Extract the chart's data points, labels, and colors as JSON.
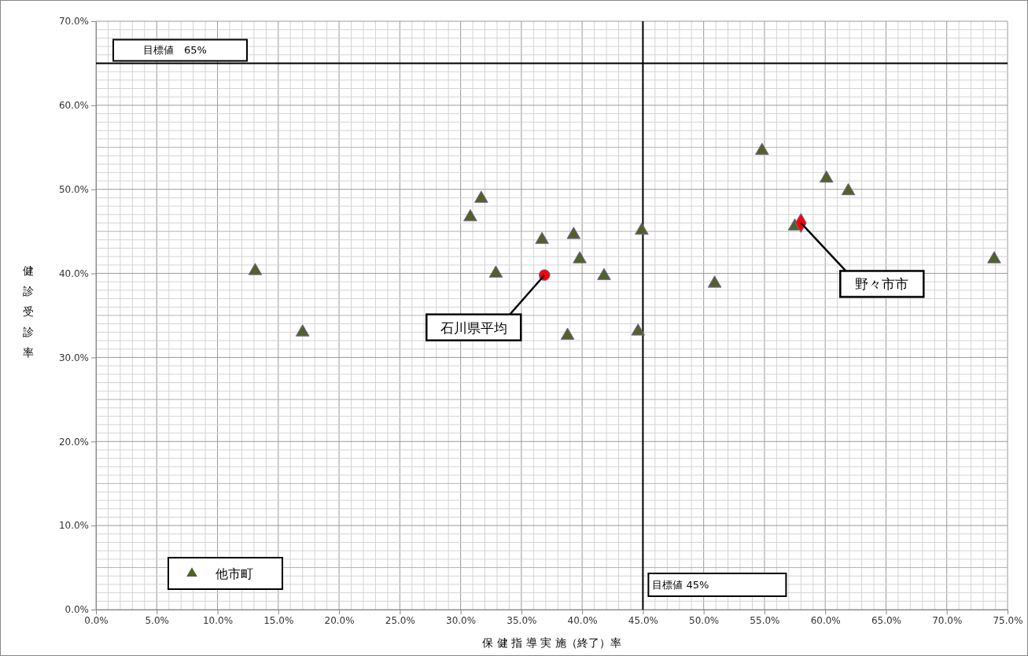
{
  "chart_data": {
    "type": "scatter",
    "xlabel": "保 健 指 導 実 施（終了）率",
    "ylabel": "健診受診率",
    "xlim": [
      0,
      75
    ],
    "ylim": [
      0,
      70
    ],
    "xticks": [
      {
        "value": 0,
        "label": "0.0%"
      },
      {
        "value": 5,
        "label": "5.0%"
      },
      {
        "value": 10,
        "label": "10.0%"
      },
      {
        "value": 15,
        "label": "15.0%"
      },
      {
        "value": 20,
        "label": "20.0%"
      },
      {
        "value": 25,
        "label": "25.0%"
      },
      {
        "value": 30,
        "label": "30.0%"
      },
      {
        "value": 35,
        "label": "35.0%"
      },
      {
        "value": 40,
        "label": "40.0%"
      },
      {
        "value": 45,
        "label": "45.0%"
      },
      {
        "value": 50,
        "label": "50.0%"
      },
      {
        "value": 55,
        "label": "55.0%"
      },
      {
        "value": 60,
        "label": "60.0%"
      },
      {
        "value": 65,
        "label": "65.0%"
      },
      {
        "value": 70,
        "label": "70.0%"
      },
      {
        "value": 75,
        "label": "75.0%"
      }
    ],
    "yticks": [
      {
        "value": 0,
        "label": "0.0%"
      },
      {
        "value": 10,
        "label": "10.0%"
      },
      {
        "value": 20,
        "label": "20.0%"
      },
      {
        "value": 30,
        "label": "30.0%"
      },
      {
        "value": 40,
        "label": "40.0%"
      },
      {
        "value": 50,
        "label": "50.0%"
      },
      {
        "value": 60,
        "label": "60.0%"
      },
      {
        "value": 70,
        "label": "70.0%"
      }
    ],
    "grid": true,
    "legend": "bottom left",
    "series": [
      {
        "name": "他市町",
        "color": "#4f6228",
        "marker": "triangle",
        "x": [
          13.1,
          17.0,
          30.8,
          31.7,
          32.9,
          36.7,
          39.3,
          39.8,
          38.8,
          41.8,
          44.6,
          44.9,
          50.9,
          54.8,
          57.5,
          60.1,
          61.9,
          73.9
        ],
        "values": [
          40.3,
          33.0,
          46.7,
          48.9,
          40.0,
          44.0,
          44.6,
          41.7,
          32.6,
          39.7,
          33.1,
          45.1,
          38.8,
          54.6,
          45.6,
          51.3,
          49.8,
          41.7
        ]
      },
      {
        "color": "#ff0000",
        "marker": "circle",
        "x": [
          36.9
        ],
        "values": [
          39.8
        ]
      },
      {
        "color": "#ff0000",
        "marker": "diamond",
        "x": [
          58.0
        ],
        "values": [
          46.0
        ]
      }
    ],
    "annotations": [
      {
        "text": "石川県平均",
        "x": 36.9,
        "y": 39.8
      },
      {
        "text": "野々市市",
        "x": 58.0,
        "y": 46.0
      }
    ],
    "ref_lines": [
      {
        "axis": "y",
        "value": 65,
        "label": "目標値　65%"
      },
      {
        "axis": "x",
        "value": 45,
        "label": "目標値 45%"
      }
    ]
  }
}
